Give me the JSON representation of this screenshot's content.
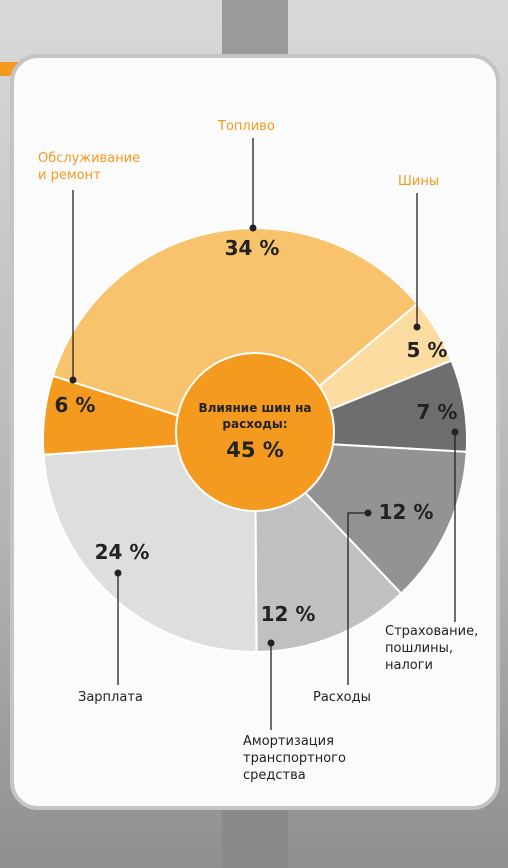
{
  "chart_data": {
    "type": "pie",
    "categories": [
      "Топливо",
      "Шины",
      "Страхование,\nпошлины,\nналоги",
      "Расходы",
      "Амортизация\nтранспортного\nсредства",
      "Зарплата",
      "Обслуживание\nи ремонт"
    ],
    "values": [
      34,
      5,
      7,
      12,
      12,
      24,
      6
    ],
    "value_labels": [
      "34 %",
      "5 %",
      "7 %",
      "12 %",
      "12 %",
      "24 %",
      "6 %"
    ],
    "colors": [
      "#f9c26c",
      "#fcdca0",
      "#6e6e6e",
      "#939393",
      "#c0c0c0",
      "#dedede",
      "#f39a1f"
    ],
    "center_label": "Влияние шин на\nрасходы:",
    "center_value": "45 %"
  }
}
